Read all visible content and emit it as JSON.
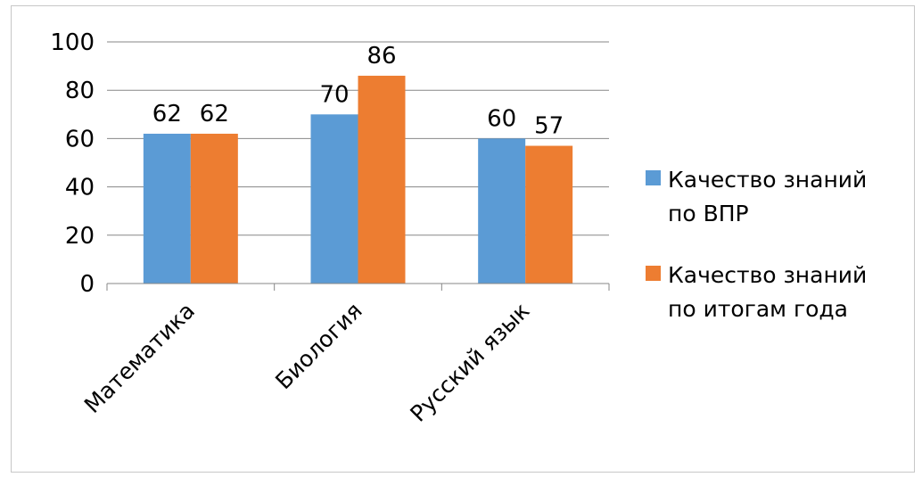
{
  "chart_data": {
    "type": "bar",
    "categories": [
      "Математика",
      "Биология",
      "Русский язык"
    ],
    "series": [
      {
        "name": "Качество знаний по ВПР",
        "legend_lines": [
          "Качество знаний",
          "по ВПР"
        ],
        "color": "#5B9BD5",
        "values": [
          62,
          70,
          60
        ]
      },
      {
        "name": "Качество знаний по итогам года",
        "legend_lines": [
          "Качество знаний",
          "по итогам года"
        ],
        "color": "#ED7D31",
        "values": [
          62,
          86,
          57
        ]
      }
    ],
    "ylim": [
      0,
      100
    ],
    "yticks": [
      0,
      20,
      40,
      60,
      80,
      100
    ],
    "grid": true,
    "legend_position": "right",
    "title": "",
    "xlabel": "",
    "ylabel": ""
  }
}
